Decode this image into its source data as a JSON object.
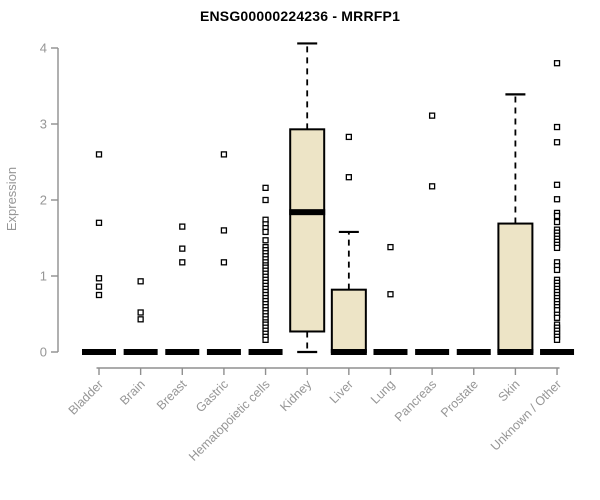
{
  "title": "ENSG00000224236 - MRRFP1",
  "chart_data": {
    "type": "boxplot",
    "title": "ENSG00000224236 - MRRFP1",
    "xlabel": "",
    "ylabel": "Expression",
    "ylim": [
      0,
      4
    ],
    "yticks": [
      0,
      1,
      2,
      3,
      4
    ],
    "grid": false,
    "legend": "none",
    "outlier_marker": "open-square",
    "categories": [
      "Bladder",
      "Brain",
      "Breast",
      "Gastric",
      "Hematopoietic cells",
      "Kidney",
      "Liver",
      "Lung",
      "Pancreas",
      "Prostate",
      "Skin",
      "Unknown / Other"
    ],
    "boxes": [
      {
        "name": "Bladder",
        "q1": 0,
        "median": 0,
        "q3": 0,
        "whisker_low": 0,
        "whisker_high": 0,
        "outliers": [
          2.6,
          1.7,
          0.97,
          0.86,
          0.75
        ]
      },
      {
        "name": "Brain",
        "q1": 0,
        "median": 0,
        "q3": 0,
        "whisker_low": 0,
        "whisker_high": 0,
        "outliers": [
          0.93,
          0.52,
          0.43
        ]
      },
      {
        "name": "Breast",
        "q1": 0,
        "median": 0,
        "q3": 0,
        "whisker_low": 0,
        "whisker_high": 0,
        "outliers": [
          1.65,
          1.36,
          1.18
        ]
      },
      {
        "name": "Gastric",
        "q1": 0,
        "median": 0,
        "q3": 0,
        "whisker_low": 0,
        "whisker_high": 0,
        "outliers": [
          2.6,
          1.6,
          1.18
        ]
      },
      {
        "name": "Hematopoietic cells",
        "q1": 0,
        "median": 0,
        "q3": 0,
        "whisker_low": 0,
        "whisker_high": 0,
        "outliers": [
          2.16,
          2.0,
          1.74,
          1.68,
          1.63,
          1.58,
          1.47,
          1.38,
          1.34,
          1.3,
          1.26,
          1.22,
          1.18,
          1.14,
          1.11,
          1.07,
          1.03,
          0.99,
          0.95,
          0.91,
          0.87,
          0.83,
          0.79,
          0.75,
          0.71,
          0.67,
          0.63,
          0.59,
          0.55,
          0.51,
          0.47,
          0.43,
          0.39,
          0.36,
          0.32,
          0.28,
          0.24,
          0.2,
          0.16
        ]
      },
      {
        "name": "Kidney",
        "q1": 0.27,
        "median": 1.84,
        "q3": 2.93,
        "whisker_low": 0,
        "whisker_high": 4.06,
        "outliers": []
      },
      {
        "name": "Liver",
        "q1": 0,
        "median": 0,
        "q3": 0.82,
        "whisker_low": 0,
        "whisker_high": 1.58,
        "outliers": [
          2.83,
          2.3
        ]
      },
      {
        "name": "Lung",
        "q1": 0,
        "median": 0,
        "q3": 0,
        "whisker_low": 0,
        "whisker_high": 0,
        "outliers": [
          1.38,
          0.76
        ]
      },
      {
        "name": "Pancreas",
        "q1": 0,
        "median": 0,
        "q3": 0,
        "whisker_low": 0,
        "whisker_high": 0,
        "outliers": [
          3.11,
          2.18
        ]
      },
      {
        "name": "Prostate",
        "q1": 0,
        "median": 0,
        "q3": 0,
        "whisker_low": 0,
        "whisker_high": 0,
        "outliers": []
      },
      {
        "name": "Skin",
        "q1": 0,
        "median": 0,
        "q3": 1.69,
        "whisker_low": 0,
        "whisker_high": 3.39,
        "outliers": []
      },
      {
        "name": "Unknown / Other",
        "q1": 0,
        "median": 0,
        "q3": 0,
        "whisker_low": 0,
        "whisker_high": 0,
        "outliers": [
          3.8,
          2.96,
          2.76,
          2.2,
          2.01,
          1.83,
          1.79,
          1.71,
          1.61,
          1.57,
          1.53,
          1.49,
          1.45,
          1.41,
          1.37,
          1.18,
          1.13,
          1.08,
          0.95,
          0.91,
          0.87,
          0.83,
          0.79,
          0.75,
          0.71,
          0.67,
          0.63,
          0.59,
          0.55,
          0.49,
          0.45,
          0.36,
          0.32,
          0.28,
          0.24,
          0.2,
          0.16
        ]
      }
    ],
    "colors": {
      "box_fill": "#EDE4C6",
      "box_border": "#000000",
      "median": "#000000",
      "whisker": "#000000",
      "outlier_stroke": "#000000",
      "outlier_fill": "#FFFFFF",
      "axis": "#8F8F8F",
      "tick_label": "#969696",
      "title": "#000000",
      "background": "#FFFFFF"
    }
  }
}
